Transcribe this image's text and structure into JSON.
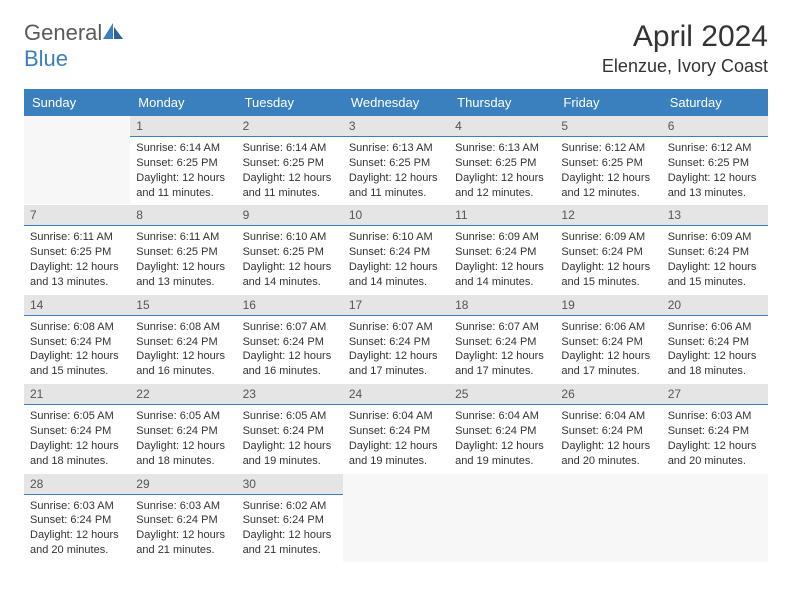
{
  "logo": {
    "general": "General",
    "blue": "Blue"
  },
  "title": "April 2024",
  "location": "Elenzue, Ivory Coast",
  "headers": [
    "Sunday",
    "Monday",
    "Tuesday",
    "Wednesday",
    "Thursday",
    "Friday",
    "Saturday"
  ],
  "colors": {
    "header_bg": "#3a80be",
    "header_text": "#ffffff",
    "daynum_bg": "#e5e5e5",
    "accent_line": "#3a80be",
    "text": "#333333",
    "logo_blue": "#3a7fbf"
  },
  "weeks": [
    [
      null,
      {
        "n": "1",
        "sr": "Sunrise: 6:14 AM",
        "ss": "Sunset: 6:25 PM",
        "dl": "Daylight: 12 hours and 11 minutes."
      },
      {
        "n": "2",
        "sr": "Sunrise: 6:14 AM",
        "ss": "Sunset: 6:25 PM",
        "dl": "Daylight: 12 hours and 11 minutes."
      },
      {
        "n": "3",
        "sr": "Sunrise: 6:13 AM",
        "ss": "Sunset: 6:25 PM",
        "dl": "Daylight: 12 hours and 11 minutes."
      },
      {
        "n": "4",
        "sr": "Sunrise: 6:13 AM",
        "ss": "Sunset: 6:25 PM",
        "dl": "Daylight: 12 hours and 12 minutes."
      },
      {
        "n": "5",
        "sr": "Sunrise: 6:12 AM",
        "ss": "Sunset: 6:25 PM",
        "dl": "Daylight: 12 hours and 12 minutes."
      },
      {
        "n": "6",
        "sr": "Sunrise: 6:12 AM",
        "ss": "Sunset: 6:25 PM",
        "dl": "Daylight: 12 hours and 13 minutes."
      }
    ],
    [
      {
        "n": "7",
        "sr": "Sunrise: 6:11 AM",
        "ss": "Sunset: 6:25 PM",
        "dl": "Daylight: 12 hours and 13 minutes."
      },
      {
        "n": "8",
        "sr": "Sunrise: 6:11 AM",
        "ss": "Sunset: 6:25 PM",
        "dl": "Daylight: 12 hours and 13 minutes."
      },
      {
        "n": "9",
        "sr": "Sunrise: 6:10 AM",
        "ss": "Sunset: 6:25 PM",
        "dl": "Daylight: 12 hours and 14 minutes."
      },
      {
        "n": "10",
        "sr": "Sunrise: 6:10 AM",
        "ss": "Sunset: 6:24 PM",
        "dl": "Daylight: 12 hours and 14 minutes."
      },
      {
        "n": "11",
        "sr": "Sunrise: 6:09 AM",
        "ss": "Sunset: 6:24 PM",
        "dl": "Daylight: 12 hours and 14 minutes."
      },
      {
        "n": "12",
        "sr": "Sunrise: 6:09 AM",
        "ss": "Sunset: 6:24 PM",
        "dl": "Daylight: 12 hours and 15 minutes."
      },
      {
        "n": "13",
        "sr": "Sunrise: 6:09 AM",
        "ss": "Sunset: 6:24 PM",
        "dl": "Daylight: 12 hours and 15 minutes."
      }
    ],
    [
      {
        "n": "14",
        "sr": "Sunrise: 6:08 AM",
        "ss": "Sunset: 6:24 PM",
        "dl": "Daylight: 12 hours and 15 minutes."
      },
      {
        "n": "15",
        "sr": "Sunrise: 6:08 AM",
        "ss": "Sunset: 6:24 PM",
        "dl": "Daylight: 12 hours and 16 minutes."
      },
      {
        "n": "16",
        "sr": "Sunrise: 6:07 AM",
        "ss": "Sunset: 6:24 PM",
        "dl": "Daylight: 12 hours and 16 minutes."
      },
      {
        "n": "17",
        "sr": "Sunrise: 6:07 AM",
        "ss": "Sunset: 6:24 PM",
        "dl": "Daylight: 12 hours and 17 minutes."
      },
      {
        "n": "18",
        "sr": "Sunrise: 6:07 AM",
        "ss": "Sunset: 6:24 PM",
        "dl": "Daylight: 12 hours and 17 minutes."
      },
      {
        "n": "19",
        "sr": "Sunrise: 6:06 AM",
        "ss": "Sunset: 6:24 PM",
        "dl": "Daylight: 12 hours and 17 minutes."
      },
      {
        "n": "20",
        "sr": "Sunrise: 6:06 AM",
        "ss": "Sunset: 6:24 PM",
        "dl": "Daylight: 12 hours and 18 minutes."
      }
    ],
    [
      {
        "n": "21",
        "sr": "Sunrise: 6:05 AM",
        "ss": "Sunset: 6:24 PM",
        "dl": "Daylight: 12 hours and 18 minutes."
      },
      {
        "n": "22",
        "sr": "Sunrise: 6:05 AM",
        "ss": "Sunset: 6:24 PM",
        "dl": "Daylight: 12 hours and 18 minutes."
      },
      {
        "n": "23",
        "sr": "Sunrise: 6:05 AM",
        "ss": "Sunset: 6:24 PM",
        "dl": "Daylight: 12 hours and 19 minutes."
      },
      {
        "n": "24",
        "sr": "Sunrise: 6:04 AM",
        "ss": "Sunset: 6:24 PM",
        "dl": "Daylight: 12 hours and 19 minutes."
      },
      {
        "n": "25",
        "sr": "Sunrise: 6:04 AM",
        "ss": "Sunset: 6:24 PM",
        "dl": "Daylight: 12 hours and 19 minutes."
      },
      {
        "n": "26",
        "sr": "Sunrise: 6:04 AM",
        "ss": "Sunset: 6:24 PM",
        "dl": "Daylight: 12 hours and 20 minutes."
      },
      {
        "n": "27",
        "sr": "Sunrise: 6:03 AM",
        "ss": "Sunset: 6:24 PM",
        "dl": "Daylight: 12 hours and 20 minutes."
      }
    ],
    [
      {
        "n": "28",
        "sr": "Sunrise: 6:03 AM",
        "ss": "Sunset: 6:24 PM",
        "dl": "Daylight: 12 hours and 20 minutes."
      },
      {
        "n": "29",
        "sr": "Sunrise: 6:03 AM",
        "ss": "Sunset: 6:24 PM",
        "dl": "Daylight: 12 hours and 21 minutes."
      },
      {
        "n": "30",
        "sr": "Sunrise: 6:02 AM",
        "ss": "Sunset: 6:24 PM",
        "dl": "Daylight: 12 hours and 21 minutes."
      },
      null,
      null,
      null,
      null
    ]
  ]
}
